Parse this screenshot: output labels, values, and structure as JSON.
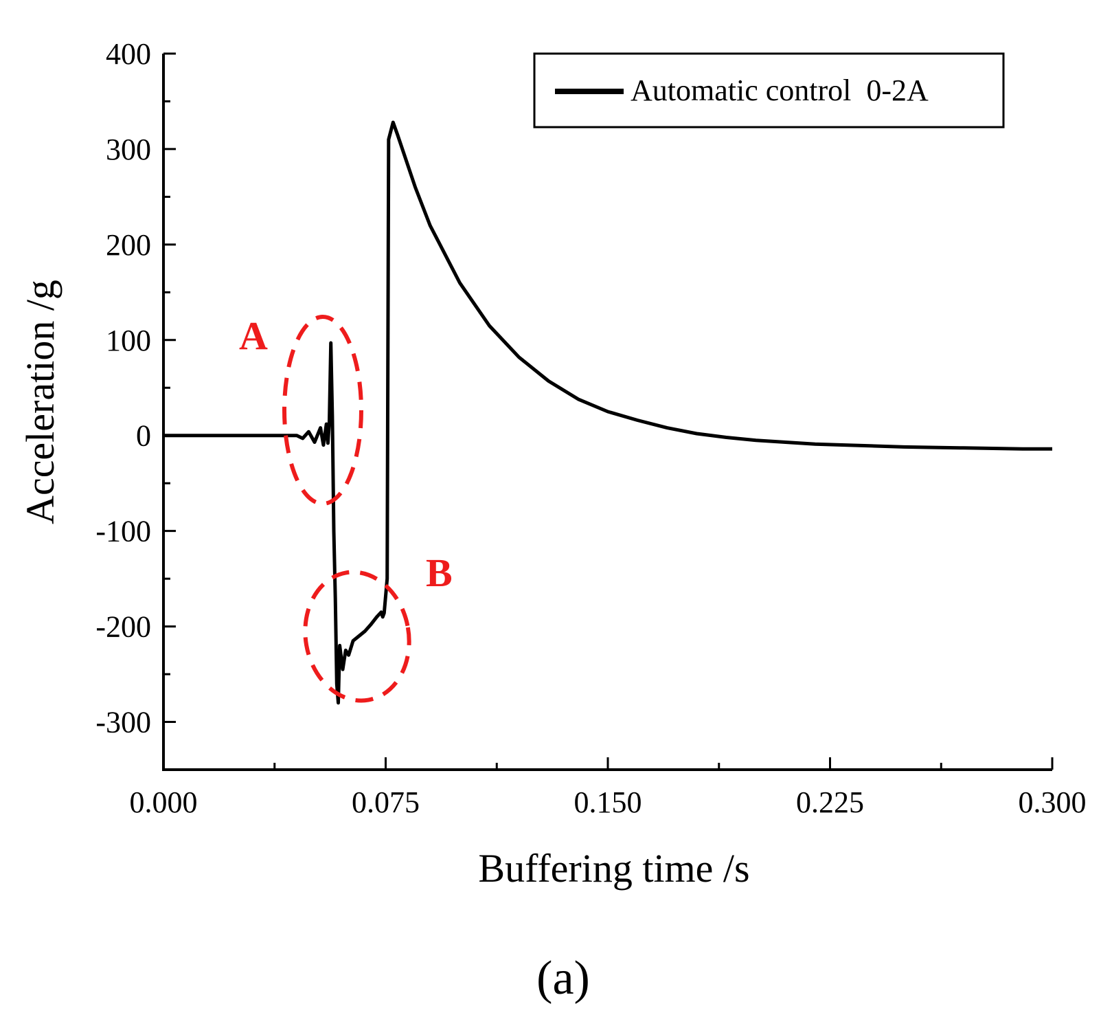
{
  "panel_label": "(a)",
  "colors": {
    "series": "#000000",
    "annotation": "#ee1c1c"
  },
  "chart_data": {
    "type": "line",
    "title": "",
    "xlabel": "Buffering time /s",
    "ylabel": "Acceleration /g",
    "xlim": [
      0,
      0.3
    ],
    "ylim": [
      -350,
      400
    ],
    "xticks": [
      0,
      0.075,
      0.15,
      0.225,
      0.3
    ],
    "xtick_labels": [
      "0.000",
      "0.075",
      "0.150",
      "0.225",
      "0.300"
    ],
    "yticks": [
      -300,
      -200,
      -100,
      0,
      100,
      200,
      300,
      400
    ],
    "ytick_labels": [
      "-300",
      "-200",
      "-100",
      "0",
      "100",
      "200",
      "300",
      "400"
    ],
    "grid": false,
    "legend": {
      "position": "top-right",
      "entries": [
        "Automatic control  0-2A"
      ]
    },
    "series": [
      {
        "name": "Automatic control  0-2A",
        "x": [
          0,
          0.03,
          0.045,
          0.047,
          0.049,
          0.051,
          0.053,
          0.054,
          0.055,
          0.0555,
          0.056,
          0.0565,
          0.057,
          0.0575,
          0.058,
          0.0585,
          0.059,
          0.0595,
          0.0605,
          0.0615,
          0.0625,
          0.064,
          0.066,
          0.068,
          0.07,
          0.072,
          0.0735,
          0.074,
          0.0745,
          0.0755,
          0.076,
          0.0775,
          0.079,
          0.085,
          0.09,
          0.1,
          0.11,
          0.12,
          0.13,
          0.14,
          0.15,
          0.16,
          0.17,
          0.18,
          0.19,
          0.2,
          0.21,
          0.22,
          0.23,
          0.24,
          0.25,
          0.26,
          0.27,
          0.28,
          0.29,
          0.3
        ],
        "y": [
          0,
          0,
          0,
          -3,
          4,
          -7,
          8,
          -10,
          12,
          -8,
          15,
          97,
          20,
          -100,
          -170,
          -260,
          -280,
          -220,
          -245,
          -225,
          -230,
          -215,
          -210,
          -205,
          -198,
          -190,
          -185,
          -190,
          -186,
          -150,
          310,
          328,
          315,
          260,
          220,
          160,
          115,
          82,
          57,
          38,
          25,
          16,
          8,
          2,
          -2,
          -5,
          -7,
          -9,
          -10,
          -11,
          -12,
          -12.5,
          -13,
          -13.5,
          -14,
          -14
        ]
      }
    ],
    "annotations": [
      {
        "label": "A",
        "shape": "dashed-ellipse"
      },
      {
        "label": "B",
        "shape": "dashed-ellipse"
      }
    ]
  }
}
